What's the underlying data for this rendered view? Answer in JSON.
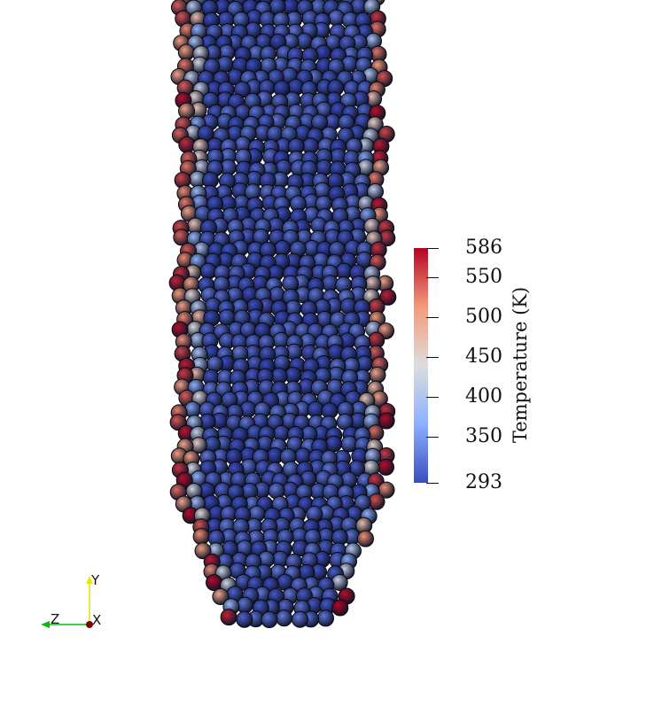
{
  "colorbar": {
    "title": "Temperature (K)",
    "min": 293,
    "max": 586,
    "ticks": [
      {
        "label": "586",
        "value": 586
      },
      {
        "label": "550",
        "value": 550
      },
      {
        "label": "500",
        "value": 500
      },
      {
        "label": "450",
        "value": 450
      },
      {
        "label": "400",
        "value": 400
      },
      {
        "label": "350",
        "value": 350
      },
      {
        "label": "293",
        "value": 293
      }
    ],
    "colors": [
      "#3b4cc0",
      "#8db0fe",
      "#dddddd",
      "#f49a7b",
      "#b40426"
    ]
  },
  "axes": {
    "y_label": "Y",
    "z_label": "Z",
    "x_label": "X",
    "y_color": "#e6e600",
    "z_color": "#00c000",
    "x_color": "#800000"
  }
}
